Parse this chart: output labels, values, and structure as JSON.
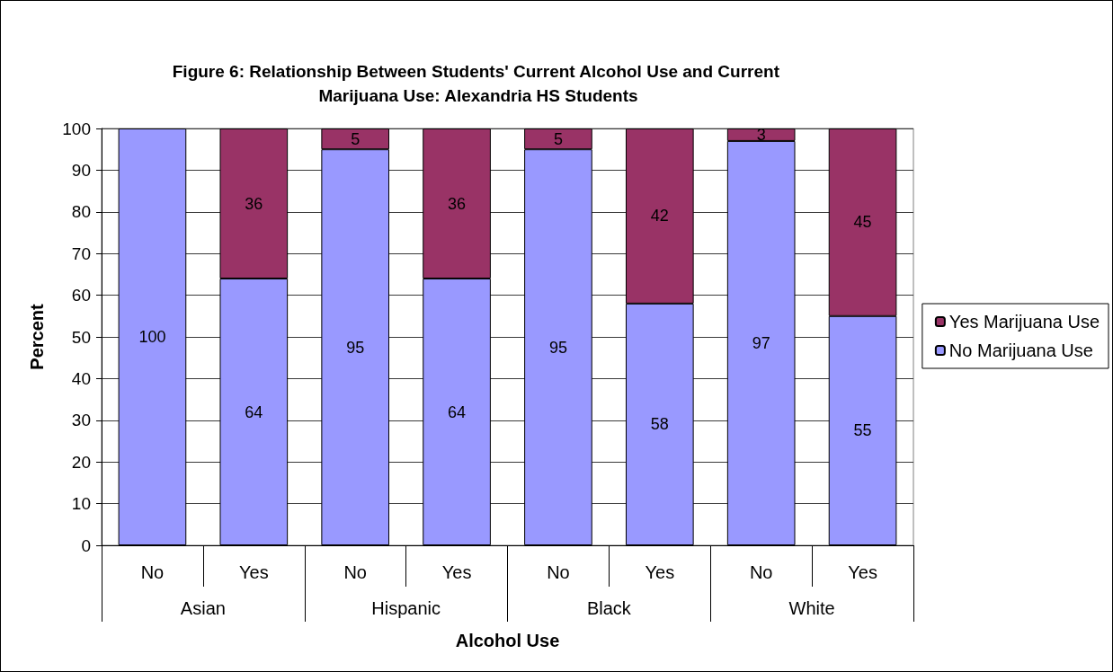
{
  "chart_data": {
    "type": "bar",
    "title": "Figure 6: Relationship Between Students' Current Alcohol Use and Current Marijuana Use: Alexandria HS Students",
    "xlabel": "Alcohol Use",
    "ylabel": "Percent",
    "categories": [
      "No",
      "Yes",
      "No",
      "Yes",
      "No",
      "Yes",
      "No",
      "Yes"
    ],
    "annotations": [
      "Asian",
      "Hispanic",
      "Black",
      "White"
    ],
    "series": [
      {
        "name": "No Marijuana Use",
        "color": "#9999ff",
        "values": [
          100,
          64,
          95,
          64,
          95,
          58,
          97,
          55
        ]
      },
      {
        "name": "Yes Marijuana Use",
        "color": "#993366",
        "values": [
          null,
          36,
          5,
          36,
          5,
          42,
          3,
          45
        ]
      }
    ],
    "stacked": true,
    "data_labels": true,
    "ylim": [
      0,
      100
    ],
    "yticks": [
      0,
      10,
      20,
      30,
      40,
      50,
      60,
      70,
      80,
      90,
      100
    ],
    "grid": "y",
    "legend": "right"
  }
}
